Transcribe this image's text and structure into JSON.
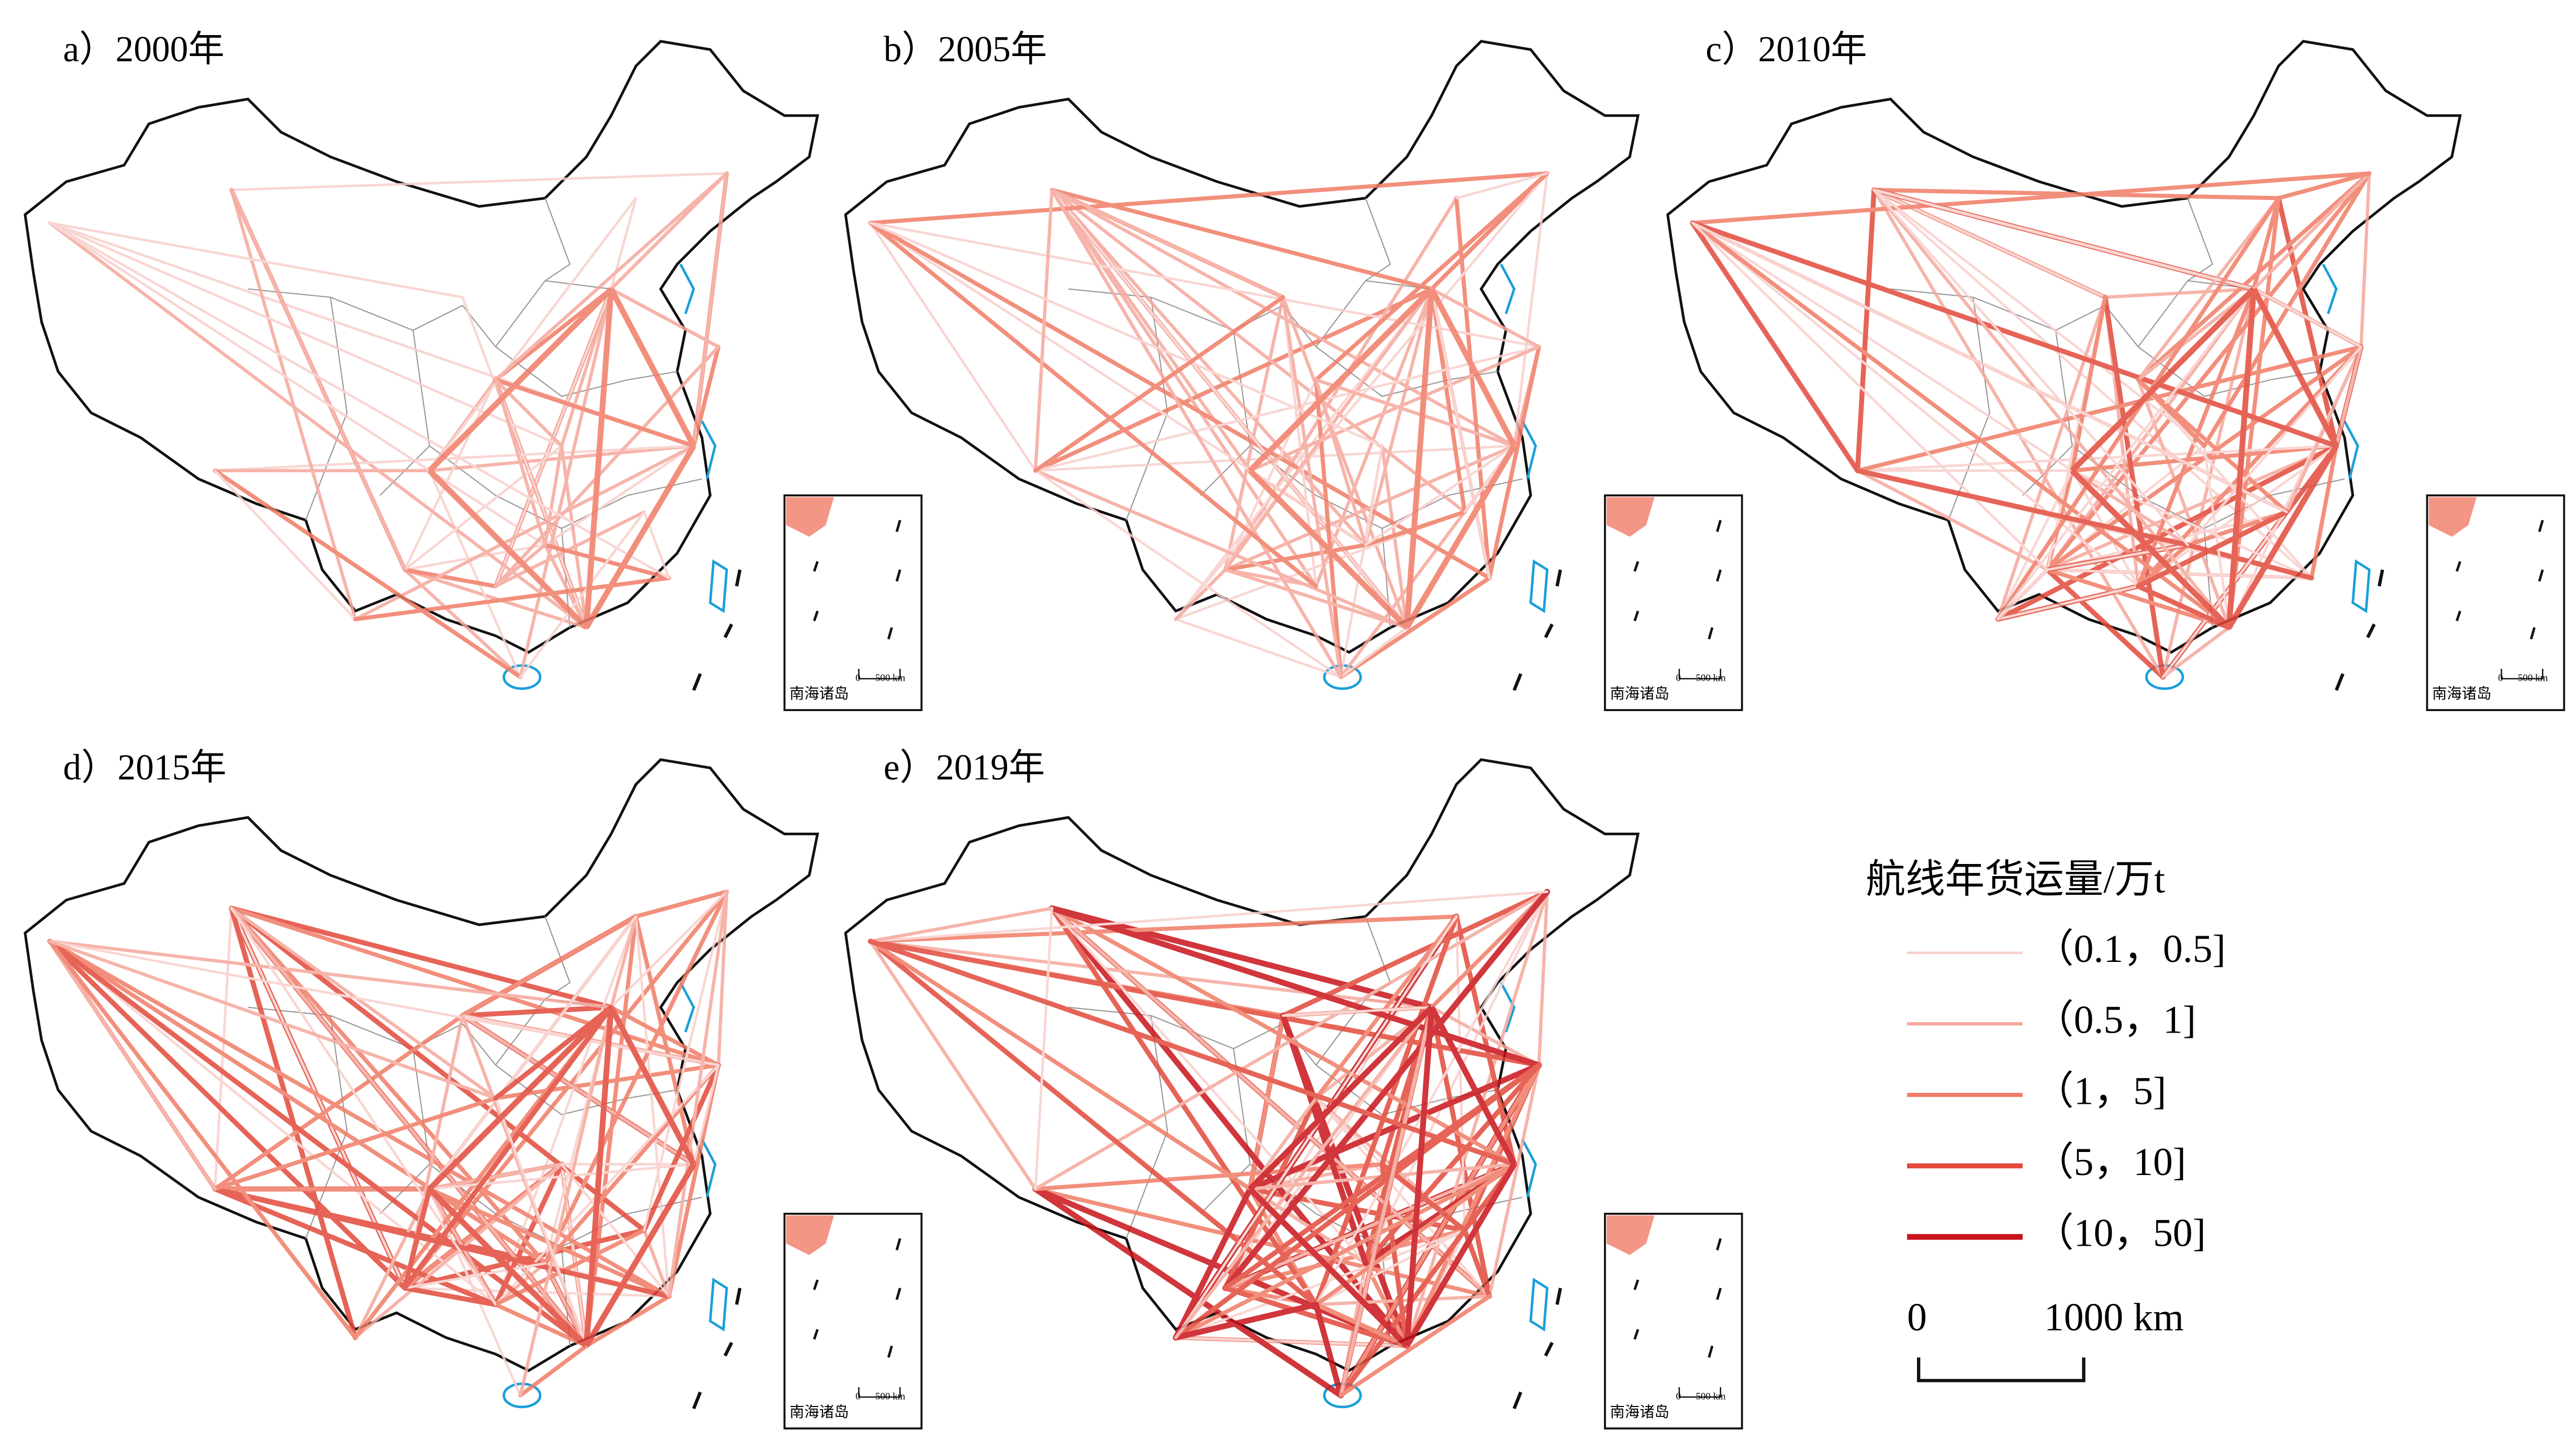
{
  "figure": {
    "panels": [
      {
        "label": "a）2000年"
      },
      {
        "label": "b）2005年"
      },
      {
        "label": "c）2010年"
      },
      {
        "label": "d）2015年"
      },
      {
        "label": "e）2019年"
      }
    ],
    "inset": {
      "label": "南海诸岛",
      "scale_zero": "0",
      "scale_label": "500 km"
    },
    "legend": {
      "title": "航线年货运量/万t",
      "items": [
        {
          "label": "（0.1，0.5]",
          "color": "#f8cfcc"
        },
        {
          "label": "（0.5，1]",
          "color": "#f5a79c"
        },
        {
          "label": "（1，5]",
          "color": "#f07c66"
        },
        {
          "label": "（5，10]",
          "color": "#e2493a"
        },
        {
          "label": "（10，50]",
          "color": "#c8141a"
        }
      ]
    },
    "scale_bar": {
      "zero": "0",
      "label": "1000 km"
    }
  }
}
